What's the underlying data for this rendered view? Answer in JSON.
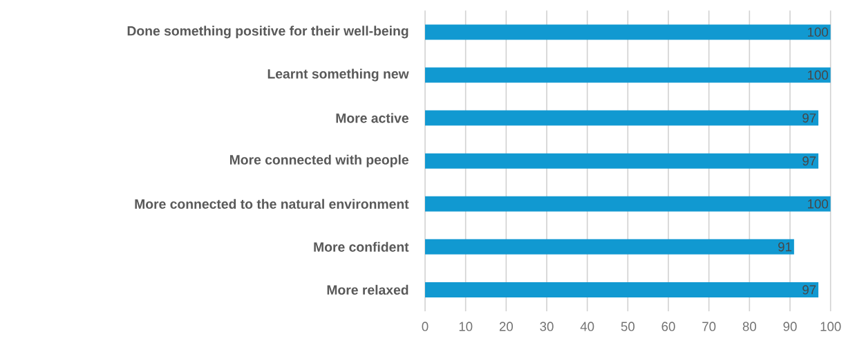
{
  "chart_data": {
    "type": "bar",
    "orientation": "horizontal",
    "categories": [
      "Done something positive for their well-being",
      "Learnt something new",
      "More active",
      "More connected with people",
      "More connected to the natural environment",
      "More confident",
      "More relaxed"
    ],
    "values": [
      100,
      100,
      97,
      97,
      100,
      91,
      97
    ],
    "color": "#1199d1",
    "xlim": [
      0,
      100
    ],
    "xticks": [
      0,
      10,
      20,
      30,
      40,
      50,
      60,
      70,
      80,
      90,
      100
    ],
    "grid": "x",
    "data_labels": true
  }
}
